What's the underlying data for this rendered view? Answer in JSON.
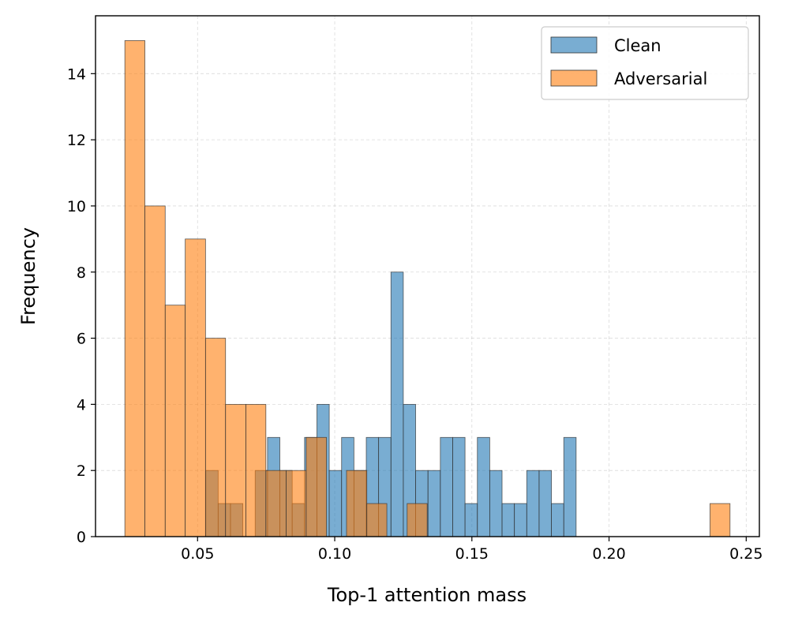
{
  "chart_data": {
    "type": "histogram",
    "title": "",
    "xlabel": "Top-1 attention mass",
    "ylabel": "Frequency",
    "xlim": [
      0.0128,
      0.2548
    ],
    "ylim": [
      0,
      15.75
    ],
    "xticks": [
      0.05,
      0.1,
      0.15,
      0.2,
      0.25
    ],
    "xtick_labels": [
      "0.05",
      "0.10",
      "0.15",
      "0.20",
      "0.25"
    ],
    "yticks": [
      0,
      2,
      4,
      6,
      8,
      10,
      12,
      14
    ],
    "ytick_labels": [
      "0",
      "2",
      "4",
      "6",
      "8",
      "10",
      "12",
      "14"
    ],
    "grid": true,
    "legend_position": "top-right",
    "series": [
      {
        "name": "Clean",
        "color": "#1f77b4",
        "opacity": 0.6,
        "bins": [
          {
            "x0": 0.053,
            "x1": 0.0575,
            "count": 2
          },
          {
            "x0": 0.0575,
            "x1": 0.062,
            "count": 1
          },
          {
            "x0": 0.062,
            "x1": 0.0665,
            "count": 1
          },
          {
            "x0": 0.0665,
            "x1": 0.071,
            "count": 0
          },
          {
            "x0": 0.071,
            "x1": 0.0755,
            "count": 2
          },
          {
            "x0": 0.0755,
            "x1": 0.08,
            "count": 3
          },
          {
            "x0": 0.08,
            "x1": 0.0845,
            "count": 2
          },
          {
            "x0": 0.0845,
            "x1": 0.089,
            "count": 1
          },
          {
            "x0": 0.089,
            "x1": 0.0935,
            "count": 3
          },
          {
            "x0": 0.0935,
            "x1": 0.098,
            "count": 4
          },
          {
            "x0": 0.098,
            "x1": 0.1025,
            "count": 2
          },
          {
            "x0": 0.1025,
            "x1": 0.107,
            "count": 3
          },
          {
            "x0": 0.107,
            "x1": 0.1115,
            "count": 2
          },
          {
            "x0": 0.1115,
            "x1": 0.116,
            "count": 3
          },
          {
            "x0": 0.116,
            "x1": 0.1205,
            "count": 3
          },
          {
            "x0": 0.1205,
            "x1": 0.125,
            "count": 8
          },
          {
            "x0": 0.125,
            "x1": 0.1295,
            "count": 4
          },
          {
            "x0": 0.1295,
            "x1": 0.134,
            "count": 2
          },
          {
            "x0": 0.134,
            "x1": 0.1385,
            "count": 2
          },
          {
            "x0": 0.1385,
            "x1": 0.143,
            "count": 3
          },
          {
            "x0": 0.143,
            "x1": 0.1475,
            "count": 3
          },
          {
            "x0": 0.1475,
            "x1": 0.152,
            "count": 1
          },
          {
            "x0": 0.152,
            "x1": 0.1565,
            "count": 3
          },
          {
            "x0": 0.1565,
            "x1": 0.161,
            "count": 2
          },
          {
            "x0": 0.161,
            "x1": 0.1655,
            "count": 1
          },
          {
            "x0": 0.1655,
            "x1": 0.17,
            "count": 1
          },
          {
            "x0": 0.17,
            "x1": 0.1745,
            "count": 2
          },
          {
            "x0": 0.1745,
            "x1": 0.179,
            "count": 2
          },
          {
            "x0": 0.179,
            "x1": 0.1835,
            "count": 1
          },
          {
            "x0": 0.1835,
            "x1": 0.188,
            "count": 3
          }
        ]
      },
      {
        "name": "Adversarial",
        "color": "#ff7f0e",
        "opacity": 0.6,
        "bins": [
          {
            "x0": 0.0235,
            "x1": 0.0308,
            "count": 15
          },
          {
            "x0": 0.0308,
            "x1": 0.0382,
            "count": 10
          },
          {
            "x0": 0.0382,
            "x1": 0.0455,
            "count": 7
          },
          {
            "x0": 0.0455,
            "x1": 0.0529,
            "count": 9
          },
          {
            "x0": 0.0529,
            "x1": 0.0602,
            "count": 6
          },
          {
            "x0": 0.0602,
            "x1": 0.0676,
            "count": 4
          },
          {
            "x0": 0.0676,
            "x1": 0.0749,
            "count": 4
          },
          {
            "x0": 0.0749,
            "x1": 0.0823,
            "count": 2
          },
          {
            "x0": 0.0823,
            "x1": 0.0896,
            "count": 2
          },
          {
            "x0": 0.0896,
            "x1": 0.097,
            "count": 3
          },
          {
            "x0": 0.097,
            "x1": 0.1043,
            "count": 0
          },
          {
            "x0": 0.1043,
            "x1": 0.1117,
            "count": 2
          },
          {
            "x0": 0.1117,
            "x1": 0.119,
            "count": 1
          },
          {
            "x0": 0.119,
            "x1": 0.1264,
            "count": 0
          },
          {
            "x0": 0.1264,
            "x1": 0.1337,
            "count": 1
          },
          {
            "x0": 0.2368,
            "x1": 0.2441,
            "count": 1
          }
        ]
      }
    ]
  }
}
